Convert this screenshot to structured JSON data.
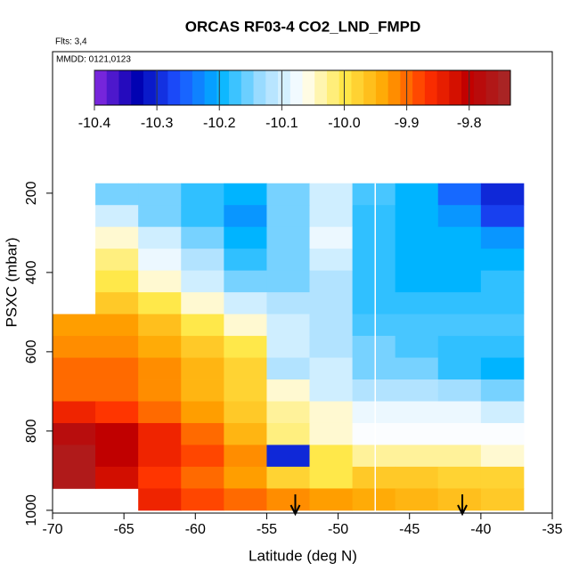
{
  "chart_data": {
    "type": "heatmap",
    "title": "ORCAS RF03-4 CO2_LND_FMPD",
    "flights": "Flts: 3,4",
    "dates": "MMDD: 0121,0123",
    "x_label": "Latitude (deg N)",
    "y_label": "PSXC (mbar)",
    "xlim": [
      -70,
      -35
    ],
    "xticks": [
      -70,
      -65,
      -60,
      -55,
      -50,
      -45,
      -40,
      -35
    ],
    "ylim": [
      1007,
      -157
    ],
    "yticks": [
      200,
      400,
      600,
      800,
      1000
    ],
    "x_edges": [
      -70,
      -67,
      -64,
      -61,
      -58,
      -55,
      -52,
      -49,
      -46,
      -43,
      -40,
      -37
    ],
    "y_edges": [
      175,
      230,
      285,
      340,
      395,
      450,
      505,
      560,
      615,
      670,
      725,
      780,
      835,
      890,
      945,
      1000
    ],
    "values": [
      [
        null,
        -10.15,
        -10.15,
        -10.18,
        -10.2,
        -10.15,
        -10.1,
        -10.17,
        -10.2,
        -10.25,
        -10.3
      ],
      [
        null,
        -10.1,
        -10.15,
        -10.18,
        -10.22,
        -10.15,
        -10.1,
        -10.18,
        -10.2,
        -10.22,
        -10.28
      ],
      [
        null,
        -10.05,
        -10.1,
        -10.15,
        -10.2,
        -10.15,
        -10.08,
        -10.18,
        -10.2,
        -10.2,
        -10.22
      ],
      [
        null,
        -10.02,
        -10.08,
        -10.12,
        -10.18,
        -10.15,
        -10.1,
        -10.18,
        -10.2,
        -10.2,
        -10.2
      ],
      [
        null,
        -10.0,
        -10.05,
        -10.1,
        -10.15,
        -10.15,
        -10.12,
        -10.18,
        -10.2,
        -10.2,
        -10.18
      ],
      [
        null,
        -9.97,
        -10.0,
        -10.05,
        -10.1,
        -10.12,
        -10.12,
        -10.18,
        -10.18,
        -10.18,
        -10.18
      ],
      [
        -9.93,
        -9.93,
        -9.96,
        -10.0,
        -10.05,
        -10.1,
        -10.12,
        -10.17,
        -10.17,
        -10.17,
        -10.17
      ],
      [
        -9.92,
        -9.92,
        -9.94,
        -9.97,
        -10.0,
        -10.1,
        -10.12,
        -10.15,
        -10.17,
        -10.18,
        -10.18
      ],
      [
        -9.9,
        -9.9,
        -9.92,
        -9.95,
        -9.98,
        -10.12,
        -10.1,
        -10.15,
        -10.15,
        -10.18,
        -10.2
      ],
      [
        -9.9,
        -9.9,
        -9.92,
        -9.95,
        -9.98,
        -10.05,
        -10.1,
        -10.12,
        -10.12,
        -10.13,
        -10.15
      ],
      [
        -9.85,
        -9.87,
        -9.9,
        -9.93,
        -9.97,
        -10.03,
        -10.05,
        -10.08,
        -10.08,
        -10.08,
        -10.1
      ],
      [
        -9.78,
        -9.8,
        -9.85,
        -9.9,
        -9.95,
        -10.02,
        -10.05,
        -10.07,
        -10.07,
        -10.07,
        -10.07
      ],
      [
        -9.76,
        -9.8,
        -9.85,
        -9.88,
        -9.92,
        -10.3,
        -10.0,
        -10.03,
        -10.03,
        -10.03,
        -10.05
      ],
      [
        -9.76,
        -9.82,
        -9.87,
        -9.9,
        -9.93,
        -9.98,
        -10.0,
        -9.97,
        -9.97,
        -9.98,
        -9.98
      ],
      [
        null,
        null,
        -9.85,
        -9.88,
        -9.9,
        -9.92,
        -9.93,
        -9.94,
        -9.95,
        -9.96,
        -9.97
      ]
    ],
    "clim": [
      -10.4,
      -9.734
    ],
    "colorbar_ticks": [
      -10.4,
      -10.3,
      -10.2,
      -10.1,
      {
        "value": -10.0,
        "label": "-10.0"
      },
      -9.9,
      -9.8
    ],
    "colormap": [
      "#8a2be2",
      "#0000b0",
      "#1e50ff",
      "#00b4ff",
      "#9edcff",
      "#ffffff",
      "#ffe84a",
      "#ffa500",
      "#ff3000",
      "#c00000",
      "#a52a2a"
    ],
    "vline_x": -47.4,
    "arrows_x": [
      -53,
      -41.3
    ]
  }
}
